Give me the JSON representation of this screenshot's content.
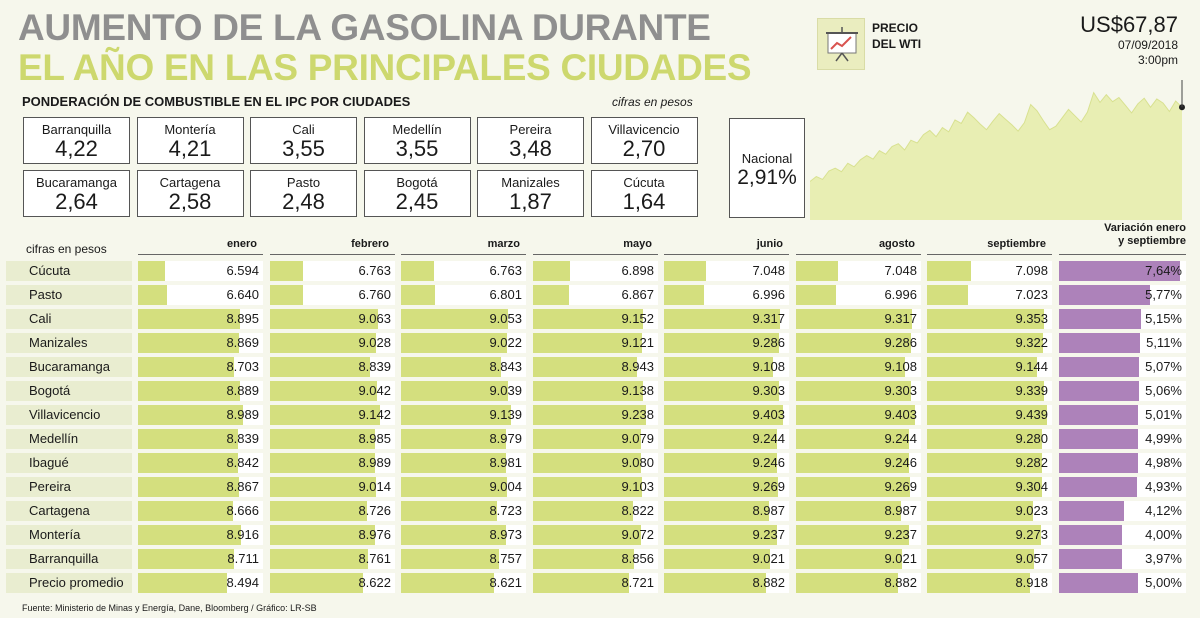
{
  "title": {
    "line1": "AUMENTO DE LA GASOLINA DURANTE",
    "line2": "EL AÑO EN LAS PRINCIPALES CIUDADES"
  },
  "ponderacion": {
    "heading": "PONDERACIÓN DE COMBUSTIBLE EN EL IPC POR CIUDADES",
    "unit": "cifras en pesos",
    "cities": [
      {
        "name": "Barranquilla",
        "value": "4,22"
      },
      {
        "name": "Montería",
        "value": "4,21"
      },
      {
        "name": "Cali",
        "value": "3,55"
      },
      {
        "name": "Medellín",
        "value": "3,55"
      },
      {
        "name": "Pereira",
        "value": "3,48"
      },
      {
        "name": "Villavicencio",
        "value": "2,70"
      },
      {
        "name": "Bucaramanga",
        "value": "2,64"
      },
      {
        "name": "Cartagena",
        "value": "2,58"
      },
      {
        "name": "Pasto",
        "value": "2,48"
      },
      {
        "name": "Bogotá",
        "value": "2,45"
      },
      {
        "name": "Manizales",
        "value": "1,87"
      },
      {
        "name": "Cúcuta",
        "value": "1,64"
      }
    ],
    "national": {
      "name": "Nacional",
      "value": "2,91%"
    }
  },
  "wti": {
    "label_line1": "PRECIO",
    "label_line2": "DEL WTI",
    "price": "US$67,87",
    "date": "07/09/2018",
    "time": "3:00pm",
    "series": [
      61.5,
      62.2,
      61.8,
      63.0,
      63.4,
      62.9,
      64.1,
      63.6,
      64.6,
      65.2,
      64.7,
      65.9,
      65.4,
      66.5,
      66.9,
      66.0,
      67.4,
      67.0,
      68.2,
      68.8,
      67.9,
      69.2,
      68.6,
      70.3,
      69.8,
      71.4,
      70.6,
      69.7,
      68.9,
      70.1,
      71.2,
      70.4,
      69.6,
      68.7,
      69.9,
      72.5,
      71.6,
      70.2,
      68.9,
      69.4,
      70.6,
      71.8,
      70.9,
      70.0,
      71.4,
      74.2,
      72.8,
      73.9,
      72.9,
      73.5,
      72.4,
      71.3,
      72.6,
      73.4,
      72.1,
      73.3,
      72.7,
      71.5,
      73.0,
      72.1
    ]
  },
  "chart_data": {
    "type": "table",
    "unit": "cifras en pesos",
    "columns": [
      "enero",
      "febrero",
      "marzo",
      "mayo",
      "junio",
      "agosto",
      "septiembre"
    ],
    "variation_header_line1": "Variación enero",
    "variation_header_line2": "y septiembre",
    "rows": [
      {
        "city": "Cúcuta",
        "values": [
          "6.594",
          "6.763",
          "6.763",
          "6.898",
          "7.048",
          "7.048",
          "7.098"
        ],
        "variation": "7,64%",
        "variation_num": 7.64
      },
      {
        "city": "Pasto",
        "values": [
          "6.640",
          "6.760",
          "6.801",
          "6.867",
          "6.996",
          "6.996",
          "7.023"
        ],
        "variation": "5,77%",
        "variation_num": 5.77
      },
      {
        "city": "Cali",
        "values": [
          "8.895",
          "9.063",
          "9.053",
          "9.152",
          "9.317",
          "9.317",
          "9.353"
        ],
        "variation": "5,15%",
        "variation_num": 5.15
      },
      {
        "city": "Manizales",
        "values": [
          "8.869",
          "9.028",
          "9.022",
          "9.121",
          "9.286",
          "9.286",
          "9.322"
        ],
        "variation": "5,11%",
        "variation_num": 5.11
      },
      {
        "city": "Bucaramanga",
        "values": [
          "8.703",
          "8.839",
          "8.843",
          "8.943",
          "9.108",
          "9.108",
          "9.144"
        ],
        "variation": "5,07%",
        "variation_num": 5.07
      },
      {
        "city": "Bogotá",
        "values": [
          "8.889",
          "9.042",
          "9.039",
          "9.138",
          "9.303",
          "9.303",
          "9.339"
        ],
        "variation": "5,06%",
        "variation_num": 5.06
      },
      {
        "city": "Villavicencio",
        "values": [
          "8.989",
          "9.142",
          "9.139",
          "9.238",
          "9.403",
          "9.403",
          "9.439"
        ],
        "variation": "5,01%",
        "variation_num": 5.01
      },
      {
        "city": "Medellín",
        "values": [
          "8.839",
          "8.985",
          "8.979",
          "9.079",
          "9.244",
          "9.244",
          "9.280"
        ],
        "variation": "4,99%",
        "variation_num": 4.99
      },
      {
        "city": "Ibagué",
        "values": [
          "8.842",
          "8.989",
          "8.981",
          "9.080",
          "9.246",
          "9.246",
          "9.282"
        ],
        "variation": "4,98%",
        "variation_num": 4.98
      },
      {
        "city": "Pereira",
        "values": [
          "8.867",
          "9.014",
          "9.004",
          "9.103",
          "9.269",
          "9.269",
          "9.304"
        ],
        "variation": "4,93%",
        "variation_num": 4.93
      },
      {
        "city": "Cartagena",
        "values": [
          "8.666",
          "8.726",
          "8.723",
          "8.822",
          "8.987",
          "8.987",
          "9.023"
        ],
        "variation": "4,12%",
        "variation_num": 4.12
      },
      {
        "city": "Montería",
        "values": [
          "8.916",
          "8.976",
          "8.973",
          "9.072",
          "9.237",
          "9.237",
          "9.273"
        ],
        "variation": "4,00%",
        "variation_num": 4.0
      },
      {
        "city": "Barranquilla",
        "values": [
          "8.711",
          "8.761",
          "8.757",
          "8.856",
          "9.021",
          "9.021",
          "9.057"
        ],
        "variation": "3,97%",
        "variation_num": 3.97
      },
      {
        "city": "Precio promedio",
        "values": [
          "8.494",
          "8.622",
          "8.621",
          "8.721",
          "8.882",
          "8.882",
          "8.918"
        ],
        "variation": "5,00%",
        "variation_num": 5.0
      }
    ]
  },
  "source": "Fuente:   Ministerio de Minas y Energía, Dane, Bloomberg / Gráfico: LR-SB",
  "colors": {
    "bar_green": "#d4df7e",
    "bar_purple": "#ad82ba",
    "title_green": "#cdd86e",
    "title_gray": "#8f8f8f"
  }
}
